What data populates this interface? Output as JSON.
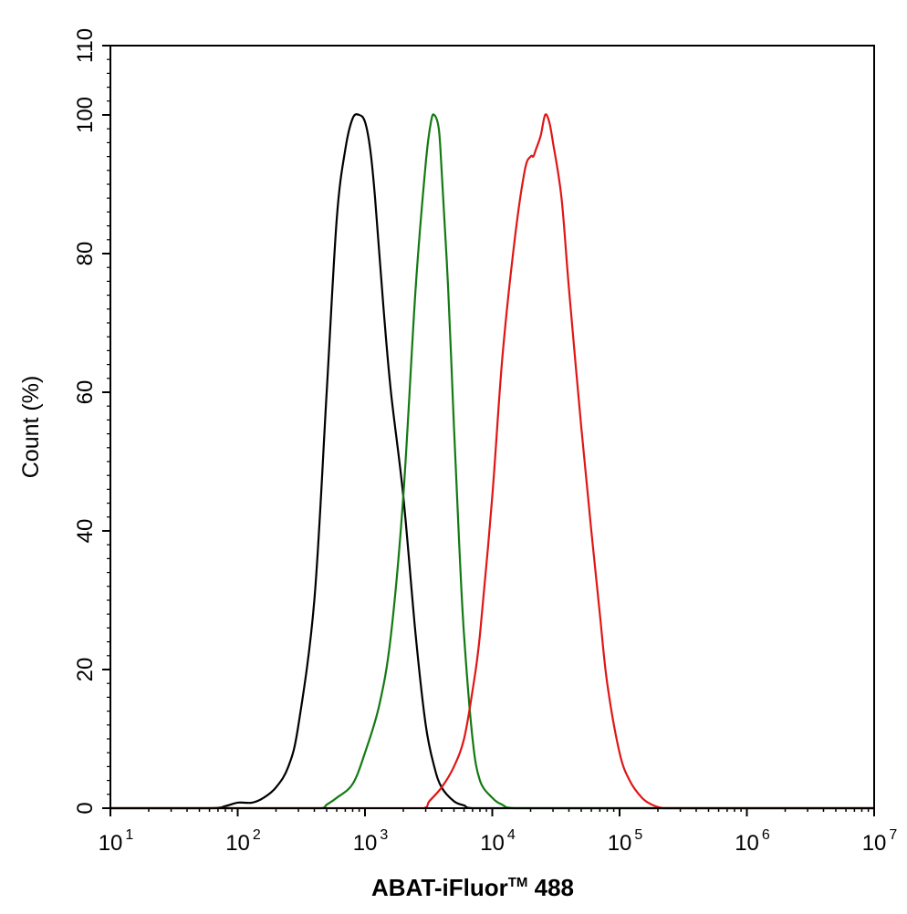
{
  "chart_data": {
    "type": "line",
    "title": "",
    "xlabel_main": "ABAT-iFluor",
    "xlabel_tm": "TM",
    "xlabel_tail": " 488",
    "ylabel": "Count  (%)",
    "xscale": "log",
    "xlim": [
      10,
      10000000
    ],
    "ylim": [
      0,
      110
    ],
    "x_ticks": [
      {
        "base": "10",
        "exp": "1"
      },
      {
        "base": "10",
        "exp": "2"
      },
      {
        "base": "10",
        "exp": "3"
      },
      {
        "base": "10",
        "exp": "4"
      },
      {
        "base": "10",
        "exp": "5"
      },
      {
        "base": "10",
        "exp": "6"
      },
      {
        "base": "10",
        "exp": "7"
      }
    ],
    "y_ticks": [
      "0",
      "20",
      "40",
      "60",
      "80",
      "100",
      "110"
    ],
    "grid": false,
    "legend": "none",
    "series": [
      {
        "color": "#000000",
        "x": [
          10,
          60,
          80,
          100,
          130,
          160,
          200,
          250,
          300,
          400,
          500,
          600,
          700,
          800,
          900,
          1000,
          1100,
          1200,
          1400,
          1600,
          2000,
          2500,
          3000,
          3500,
          4000,
          5000,
          6000,
          7000,
          10000000
        ],
        "y": [
          0,
          0,
          0.3,
          0.8,
          0.8,
          1.5,
          3,
          6,
          12,
          30,
          60,
          85,
          95,
          99.5,
          100,
          99,
          95,
          88,
          72,
          60,
          45,
          25,
          12,
          6,
          3,
          1,
          0.4,
          0,
          0
        ]
      },
      {
        "color": "#137a13",
        "x": [
          10,
          450,
          500,
          600,
          800,
          1000,
          1300,
          1600,
          2000,
          2500,
          3000,
          3300,
          3500,
          3800,
          4000,
          4500,
          5000,
          5500,
          6000,
          7000,
          8000,
          10000,
          12000,
          15000,
          10000000
        ],
        "y": [
          0,
          0,
          0.5,
          1.5,
          3.5,
          8,
          15,
          25,
          45,
          75,
          93,
          99,
          100,
          98,
          92,
          75,
          55,
          38,
          25,
          10,
          4,
          1.5,
          0.5,
          0,
          0
        ]
      },
      {
        "color": "#e01616",
        "x": [
          10,
          2900,
          3200,
          4000,
          5000,
          6000,
          7000,
          8000,
          10000,
          12000,
          15000,
          18000,
          20000,
          21000,
          22000,
          24000,
          26000,
          28000,
          30000,
          35000,
          40000,
          50000,
          60000,
          70000,
          80000,
          100000,
          120000,
          150000,
          180000,
          220000,
          250000,
          10000000
        ],
        "y": [
          0,
          0,
          1,
          3,
          6,
          10,
          17,
          25,
          45,
          65,
          82,
          92,
          94,
          94,
          95,
          97,
          100,
          99,
          96,
          88,
          75,
          55,
          40,
          28,
          18,
          8,
          4,
          1.5,
          0.5,
          0,
          0,
          0
        ]
      }
    ]
  }
}
